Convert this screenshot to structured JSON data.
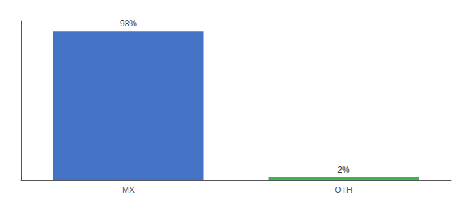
{
  "chart_data": {
    "type": "bar",
    "categories": [
      "MX",
      "OTH"
    ],
    "values": [
      98,
      2
    ],
    "value_labels": [
      "98%",
      "2%"
    ],
    "data_labels": true,
    "colors": [
      "#4472C4",
      "#3CB54A"
    ],
    "ylim": [
      0,
      105
    ],
    "yticks": [],
    "tick_labels": "x",
    "grid": false
  }
}
